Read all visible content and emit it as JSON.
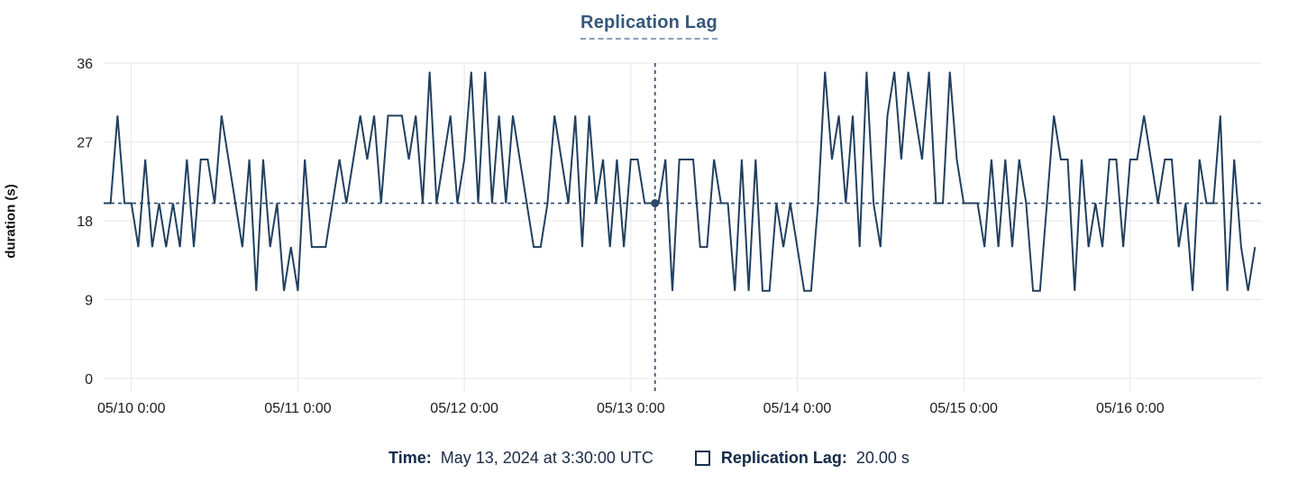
{
  "title": "Replication Lag",
  "y_axis_label": "duration (s)",
  "colors": {
    "series_line": "#21405f",
    "crosshair": "#2d4a6b",
    "marker": "#2d4a6b",
    "grid": "#e7e7e7",
    "title_text": "#36587c",
    "footer_text": "#122b49"
  },
  "footer": {
    "time_label": "Time:",
    "time_value": "May 13, 2024 at 3:30:00 UTC",
    "series_label": "Replication Lag:",
    "series_value": "20.00 s"
  },
  "chart_data": {
    "type": "line",
    "title": "Replication Lag",
    "ylabel": "duration (s)",
    "xlabel": "",
    "ylim": [
      0,
      36
    ],
    "grid": true,
    "legend_position": "bottom",
    "series_name": "Replication Lag",
    "x_start": "2024-05-09 20:00 UTC",
    "x_step_hours": 1,
    "x_total_hours": 167,
    "y_ticks": [
      0,
      9,
      18,
      27,
      36
    ],
    "x_ticks": {
      "hour_offsets": [
        4,
        28,
        52,
        76,
        100,
        124,
        148
      ],
      "labels": [
        "05/10 0:00",
        "05/11 0:00",
        "05/12 0:00",
        "05/13 0:00",
        "05/14 0:00",
        "05/15 0:00",
        "05/16 0:00"
      ]
    },
    "values": [
      20,
      20,
      30,
      20,
      20,
      15,
      25,
      15,
      20,
      15,
      20,
      15,
      25,
      15,
      25,
      25,
      20,
      30,
      25,
      20,
      15,
      25,
      10,
      25,
      15,
      20,
      10,
      15,
      10,
      25,
      15,
      15,
      15,
      20,
      25,
      20,
      25,
      30,
      25,
      30,
      20,
      30,
      30,
      30,
      25,
      30,
      20,
      35,
      20,
      25,
      30,
      20,
      25,
      35,
      20,
      35,
      20,
      30,
      20,
      30,
      25,
      20,
      15,
      15,
      20,
      30,
      25,
      20,
      30,
      15,
      30,
      20,
      25,
      15,
      25,
      15,
      25,
      25,
      20,
      20,
      20,
      25,
      10,
      25,
      25,
      25,
      15,
      15,
      25,
      20,
      20,
      10,
      25,
      10,
      25,
      10,
      10,
      20,
      15,
      20,
      15,
      10,
      10,
      20,
      35,
      25,
      30,
      20,
      30,
      15,
      35,
      20,
      15,
      30,
      35,
      25,
      35,
      30,
      25,
      35,
      20,
      20,
      35,
      25,
      20,
      20,
      20,
      15,
      25,
      15,
      25,
      15,
      25,
      20,
      10,
      10,
      20,
      30,
      25,
      25,
      10,
      25,
      15,
      20,
      15,
      25,
      25,
      15,
      25,
      25,
      30,
      25,
      20,
      25,
      25,
      15,
      20,
      10,
      25,
      20,
      20,
      30,
      10,
      25,
      15,
      10,
      15
    ],
    "crosshair": {
      "hour_offset": 79.5,
      "value": 20,
      "time_label": "May 13, 2024 at 3:30:00 UTC",
      "value_label": "20.00 s"
    }
  }
}
